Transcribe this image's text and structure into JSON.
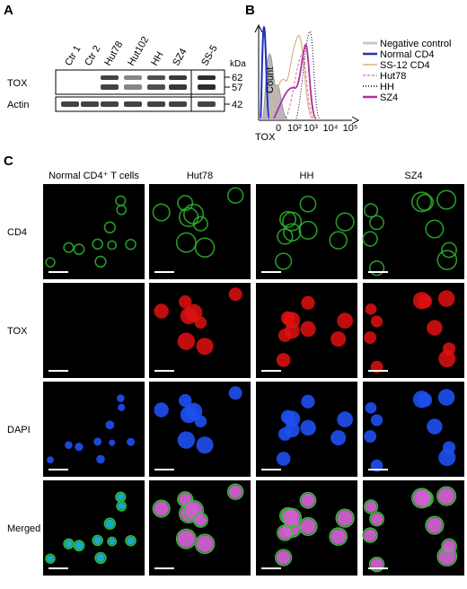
{
  "panel_a": {
    "label": "A",
    "lanes": [
      "Ctr 1",
      "Ctr 2",
      "Hut78",
      "Hut102",
      "HH",
      "SZ4",
      "SS-5"
    ],
    "kda_label": "kDa",
    "markers": [
      "62",
      "57",
      "42"
    ],
    "rows": [
      "TOX",
      "Actin"
    ]
  },
  "panel_b": {
    "label": "B",
    "legend": [
      "Negative control",
      "Normal CD4",
      "SS-12 CD4",
      "Hut78",
      "HH",
      "SZ4"
    ],
    "y_axis_label": "Count",
    "x_axis_label": "TOX",
    "x_ticks": [
      "0",
      "10²",
      "10³",
      "10⁴",
      "10⁵"
    ]
  },
  "panel_c": {
    "label": "C",
    "columns": [
      "Normal CD4⁺ T cells",
      "Hut78",
      "HH",
      "SZ4"
    ],
    "rows": [
      "CD4",
      "TOX",
      "DAPI",
      "Merged"
    ]
  }
}
